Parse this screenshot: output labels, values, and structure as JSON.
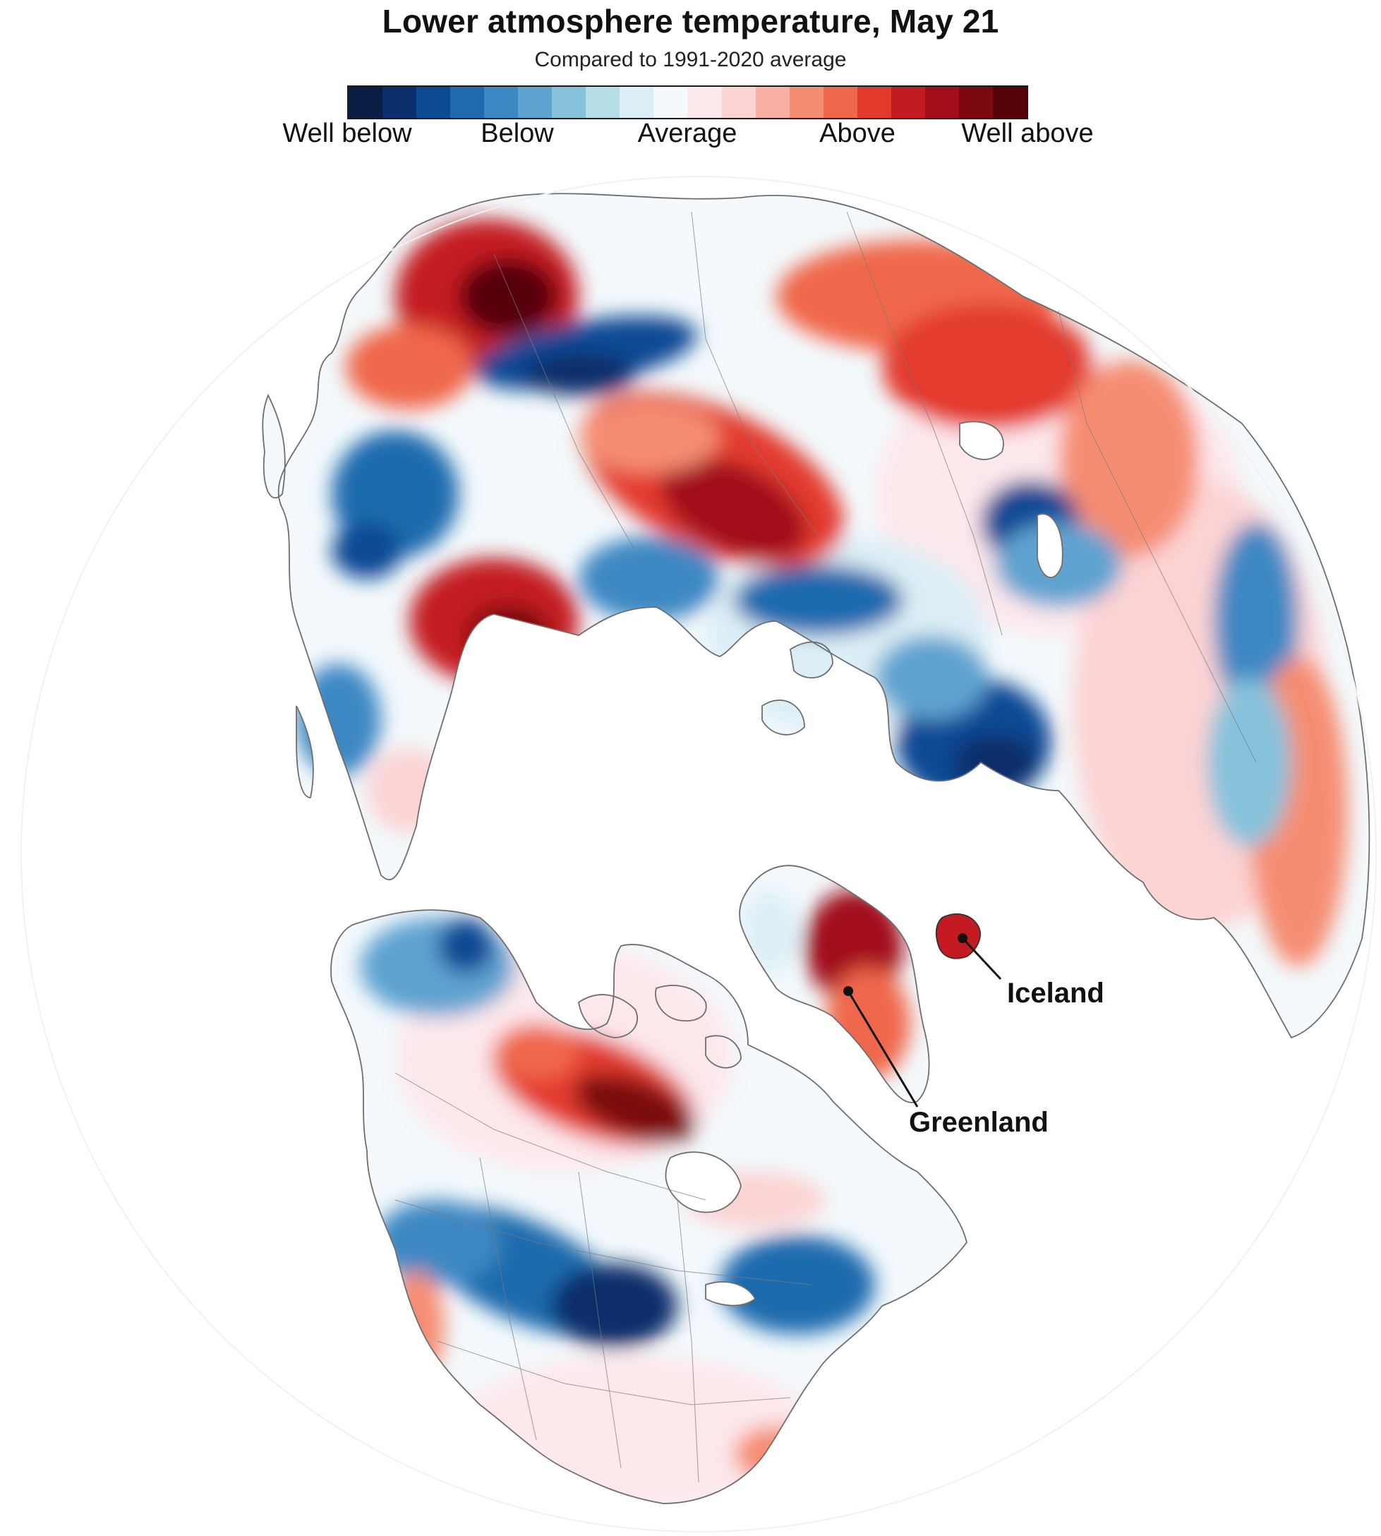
{
  "title": "Lower atmosphere temperature, May 21",
  "subtitle": "Compared to 1991-2020 average",
  "legend": {
    "colors": [
      "#0b1f45",
      "#0a2f6b",
      "#0c4a94",
      "#1f6aae",
      "#3c88c3",
      "#5fa3d0",
      "#86c2dc",
      "#b4dde6",
      "#dceff6",
      "#f3f9fc",
      "#fde8ec",
      "#fcd3d3",
      "#f9b0a3",
      "#f58d72",
      "#f0684c",
      "#e33a2e",
      "#c41b22",
      "#a20f1a",
      "#7c0811",
      "#560307"
    ],
    "labels": [
      "Well below",
      "Below",
      "Average",
      "Above",
      "Well above"
    ]
  },
  "map": {
    "projection": "orthographic, north polar view",
    "land_color": "#ffffff",
    "border_color": "#6e6e6e"
  },
  "annotations": {
    "iceland": "Iceland",
    "greenland": "Greenland"
  }
}
